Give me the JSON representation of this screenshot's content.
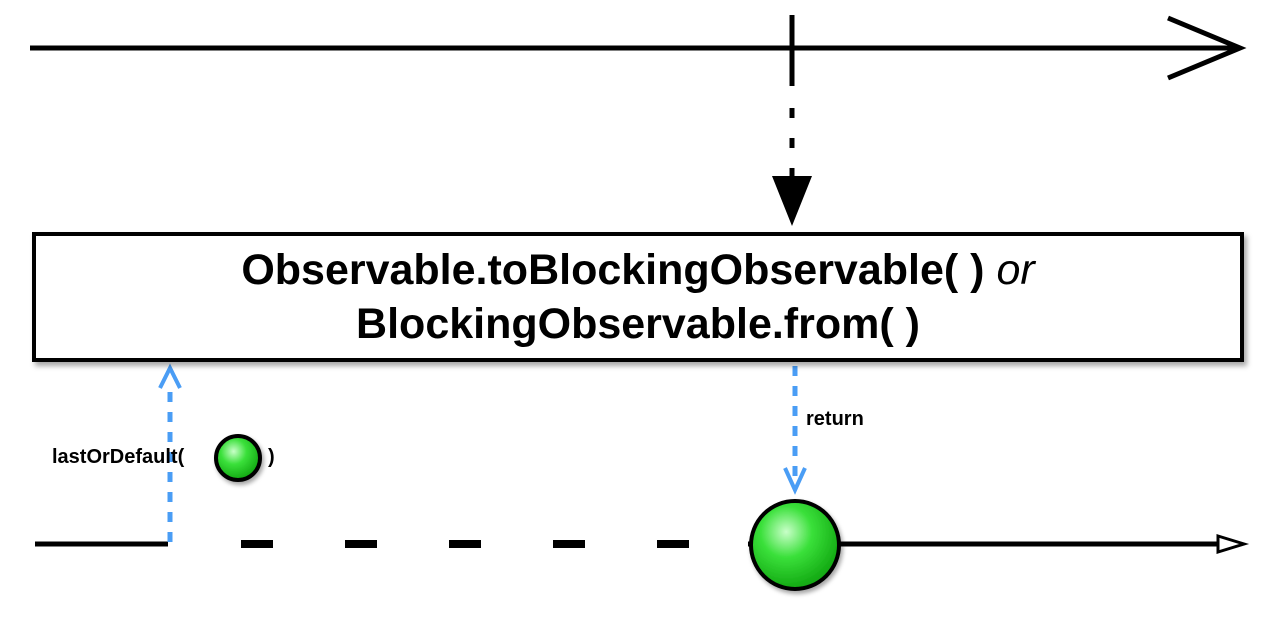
{
  "operator": {
    "line1": "Observable.toBlockingObservable( )",
    "line1_connector": "or",
    "line2": "BlockingObservable.from( )"
  },
  "labels": {
    "method_prefix": "lastOrDefault(",
    "method_suffix": ")",
    "return": "return"
  },
  "colors": {
    "line": "#000000",
    "arrow_blue": "#4a9df5",
    "marble_green": "#2ed12e",
    "marble_stroke": "#000000"
  }
}
